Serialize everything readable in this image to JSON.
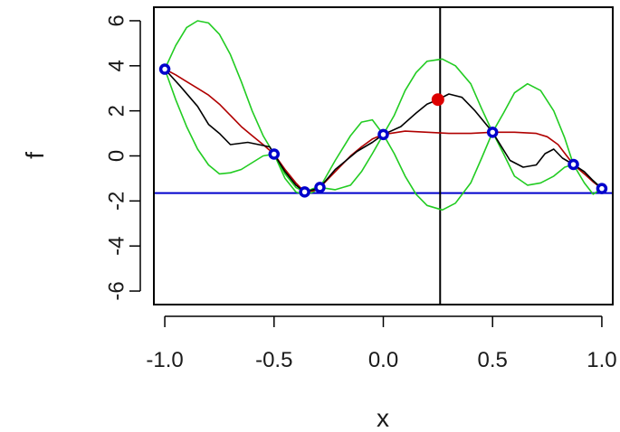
{
  "chart_data": {
    "type": "line",
    "title": "",
    "xlabel": "x",
    "ylabel": "f",
    "xlim": [
      -1.05,
      1.05
    ],
    "ylim": [
      -6.6,
      6.6
    ],
    "x_ticks": [
      -1.0,
      -0.5,
      0.0,
      0.5,
      1.0
    ],
    "x_tick_labels": [
      "-1.0",
      "-0.5",
      "0.0",
      "0.5",
      "1.0"
    ],
    "y_ticks": [
      -6,
      -4,
      -2,
      0,
      2,
      4,
      6
    ],
    "y_tick_labels": [
      "-6",
      "-4",
      "-2",
      "0",
      "2",
      "4",
      "6"
    ],
    "grid": false,
    "legend": "none",
    "colors": {
      "observed": "#0000cc",
      "next_point": "#dd0000",
      "mean": "#b00000",
      "band": "#22cc22",
      "true_function": "#000000",
      "hline": "#0000cc",
      "vline": "#000000"
    },
    "hline_y": -1.65,
    "vline_x": 0.26,
    "series": [
      {
        "role": "observed",
        "x": [
          -1.0,
          -0.5,
          -0.36,
          -0.29,
          0.0,
          0.5,
          0.87,
          1.0
        ],
        "y": [
          3.85,
          0.08,
          -1.6,
          -1.4,
          0.95,
          1.05,
          -0.38,
          -1.45
        ]
      },
      {
        "role": "next_point",
        "x": [
          0.25
        ],
        "y": [
          2.5
        ]
      },
      {
        "role": "true_function",
        "x": [
          -1.0,
          -0.93,
          -0.85,
          -0.8,
          -0.75,
          -0.7,
          -0.62,
          -0.57,
          -0.52,
          -0.5,
          -0.45,
          -0.4,
          -0.36,
          -0.32,
          -0.29,
          -0.22,
          -0.12,
          -0.05,
          0.0,
          0.08,
          0.15,
          0.2,
          0.25,
          0.3,
          0.36,
          0.42,
          0.5,
          0.58,
          0.64,
          0.7,
          0.74,
          0.78,
          0.82,
          0.87,
          0.92,
          0.96,
          1.0
        ],
        "y": [
          3.85,
          3.1,
          2.2,
          1.4,
          1.0,
          0.5,
          0.6,
          0.5,
          0.4,
          0.08,
          -0.7,
          -1.3,
          -1.6,
          -1.5,
          -1.4,
          -0.6,
          0.2,
          0.6,
          0.95,
          1.3,
          1.9,
          2.3,
          2.5,
          2.75,
          2.6,
          2.0,
          1.05,
          -0.2,
          -0.5,
          -0.4,
          0.1,
          0.3,
          -0.1,
          -0.38,
          -0.7,
          -1.1,
          -1.45
        ]
      },
      {
        "role": "mean",
        "x": [
          -1.0,
          -0.95,
          -0.9,
          -0.85,
          -0.8,
          -0.75,
          -0.7,
          -0.65,
          -0.6,
          -0.55,
          -0.5,
          -0.45,
          -0.4,
          -0.36,
          -0.32,
          -0.29,
          -0.25,
          -0.2,
          -0.15,
          -0.1,
          -0.05,
          0.0,
          0.1,
          0.2,
          0.3,
          0.4,
          0.5,
          0.6,
          0.7,
          0.75,
          0.8,
          0.87,
          0.92,
          0.96,
          1.0
        ],
        "y": [
          3.85,
          3.6,
          3.3,
          3.0,
          2.7,
          2.3,
          1.8,
          1.3,
          0.9,
          0.5,
          0.08,
          -0.6,
          -1.2,
          -1.6,
          -1.55,
          -1.4,
          -1.0,
          -0.5,
          0.0,
          0.4,
          0.75,
          0.95,
          1.1,
          1.05,
          1.0,
          1.0,
          1.05,
          1.05,
          1.0,
          0.85,
          0.5,
          -0.38,
          -0.8,
          -1.15,
          -1.45
        ]
      },
      {
        "role": "upper_band",
        "x": [
          -1.0,
          -0.95,
          -0.9,
          -0.85,
          -0.8,
          -0.75,
          -0.7,
          -0.65,
          -0.6,
          -0.55,
          -0.5,
          -0.45,
          -0.4,
          -0.36,
          -0.32,
          -0.29,
          -0.22,
          -0.15,
          -0.1,
          -0.05,
          0.0,
          0.05,
          0.1,
          0.15,
          0.2,
          0.27,
          0.33,
          0.4,
          0.45,
          0.5,
          0.55,
          0.6,
          0.66,
          0.72,
          0.78,
          0.83,
          0.87,
          0.92,
          0.96,
          1.0
        ],
        "y": [
          3.85,
          4.9,
          5.7,
          6.0,
          5.9,
          5.4,
          4.5,
          3.3,
          2.0,
          0.9,
          0.08,
          -0.8,
          -1.4,
          -1.6,
          -1.45,
          -1.4,
          -0.2,
          0.9,
          1.5,
          1.6,
          0.95,
          1.8,
          2.9,
          3.7,
          4.2,
          4.3,
          4.0,
          3.2,
          2.1,
          1.05,
          1.9,
          2.8,
          3.2,
          2.9,
          2.0,
          0.8,
          -0.38,
          -0.8,
          -1.1,
          -1.45
        ]
      },
      {
        "role": "lower_band",
        "x": [
          -1.0,
          -0.95,
          -0.9,
          -0.85,
          -0.8,
          -0.75,
          -0.7,
          -0.65,
          -0.6,
          -0.55,
          -0.5,
          -0.45,
          -0.4,
          -0.36,
          -0.32,
          -0.29,
          -0.22,
          -0.15,
          -0.1,
          -0.05,
          0.0,
          0.05,
          0.1,
          0.15,
          0.2,
          0.27,
          0.33,
          0.4,
          0.45,
          0.5,
          0.55,
          0.6,
          0.66,
          0.72,
          0.78,
          0.83,
          0.87,
          0.92,
          0.96,
          1.0
        ],
        "y": [
          3.85,
          2.5,
          1.3,
          0.3,
          -0.4,
          -0.8,
          -0.75,
          -0.6,
          -0.3,
          0.0,
          0.08,
          -1.0,
          -1.6,
          -1.75,
          -1.6,
          -1.4,
          -1.5,
          -1.3,
          -0.7,
          0.1,
          0.95,
          0.1,
          -0.9,
          -1.7,
          -2.2,
          -2.4,
          -2.1,
          -1.2,
          -0.1,
          1.05,
          0.1,
          -0.9,
          -1.3,
          -1.2,
          -0.9,
          -0.5,
          -0.38,
          -1.2,
          -1.7,
          -1.45
        ]
      }
    ]
  }
}
